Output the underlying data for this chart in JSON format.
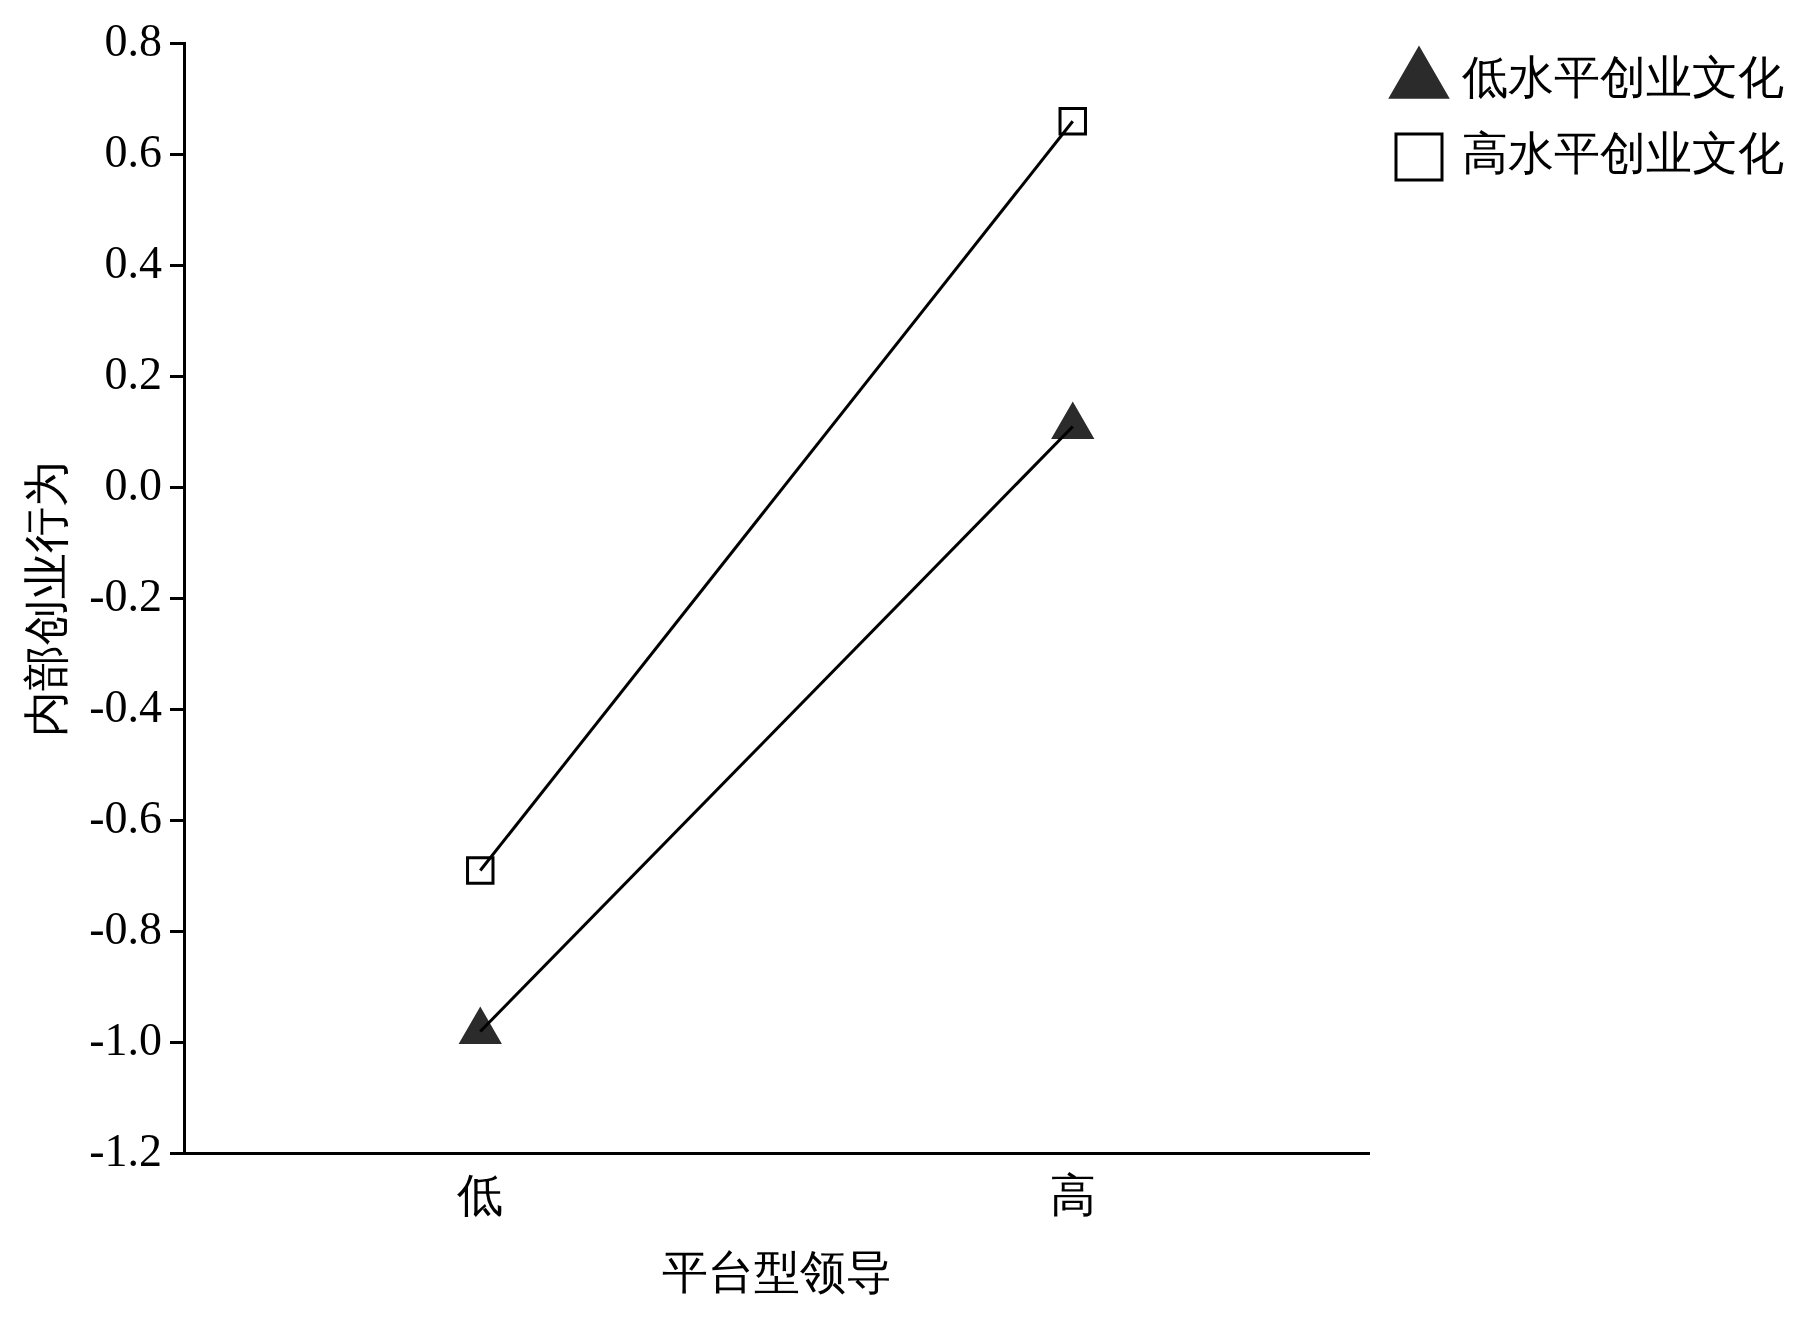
{
  "chart_data": {
    "type": "line",
    "xlabel": "平台型领导",
    "ylabel": "内部创业行为",
    "categories": [
      "低",
      "高"
    ],
    "series": [
      {
        "name": "低水平创业文化",
        "color": "#000000",
        "colors": [
          "#2b2b2b",
          "#2b2b2b"
        ],
        "marker": "triangle",
        "values": [
          -0.98,
          0.11
        ]
      },
      {
        "name": "高水平创业文化",
        "color": "#000000",
        "marker": "square",
        "values": [
          -0.69,
          0.66
        ]
      }
    ],
    "ylim": [
      -1.2,
      0.8
    ],
    "yticks": [
      {
        "value": -1.2,
        "label": "-1.2"
      },
      {
        "value": -1.0,
        "label": "-1.0"
      },
      {
        "value": -0.8,
        "label": "-0.8"
      },
      {
        "value": -0.6,
        "label": "-0.6"
      },
      {
        "value": -0.4,
        "label": "-0.4"
      },
      {
        "value": -0.2,
        "label": "-0.2"
      },
      {
        "value": 0,
        "label": "0.0"
      },
      {
        "value": 0.2,
        "label": "0.2"
      },
      {
        "value": 0.4,
        "label": "0.4"
      },
      {
        "value": 0.6,
        "label": "0.6"
      },
      {
        "value": 0.8,
        "label": "0.8"
      }
    ],
    "grid": false,
    "legend": "top right",
    "line_style": "solid"
  }
}
